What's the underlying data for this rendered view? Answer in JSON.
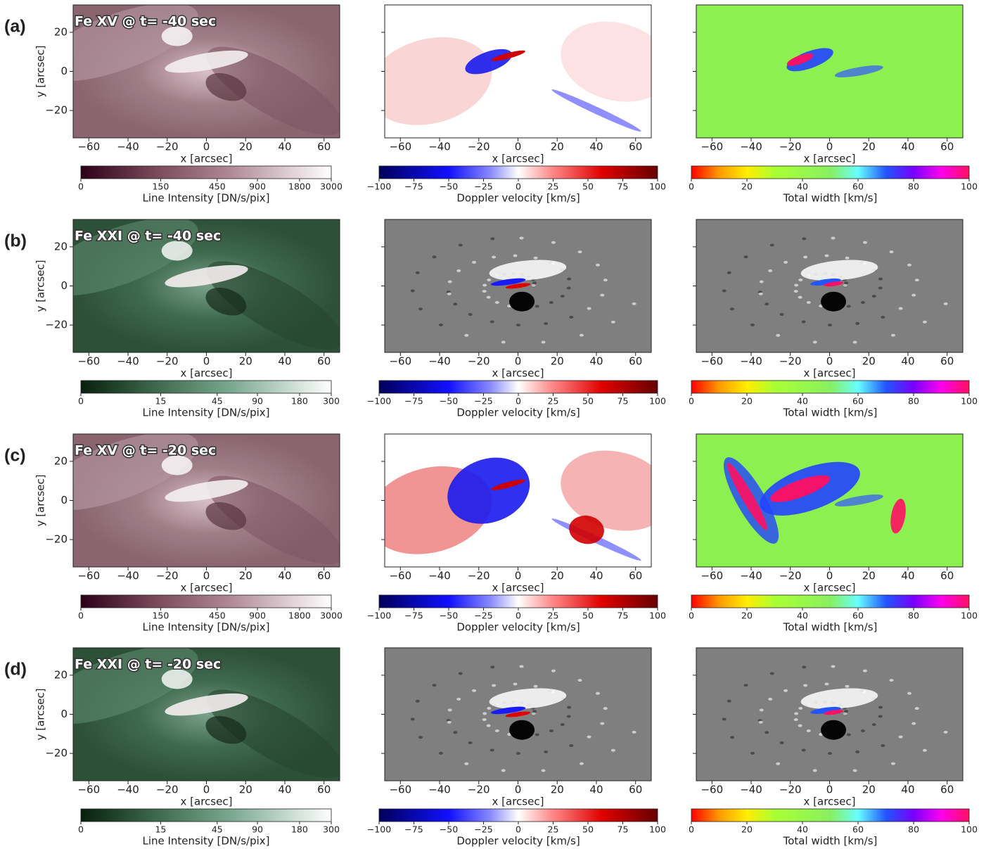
{
  "rows": [
    {
      "label": "(a)",
      "title": "Fe XV @ t= -40 sec",
      "intensity_ticks": [
        0,
        150,
        450,
        900,
        1800,
        3000
      ]
    },
    {
      "label": "(b)",
      "title": "Fe XXI @ t= -40 sec",
      "intensity_ticks": [
        0,
        15,
        45,
        90,
        180,
        300
      ]
    },
    {
      "label": "(c)",
      "title": "Fe XV @ t= -20 sec",
      "intensity_ticks": [
        0,
        150,
        450,
        900,
        1800,
        3000
      ]
    },
    {
      "label": "(d)",
      "title": "Fe XXI @ t= -20 sec",
      "intensity_ticks": [
        0,
        15,
        45,
        90,
        180,
        300
      ]
    }
  ],
  "axes": {
    "xlabel": "x [arcsec]",
    "xlim": [
      -68,
      68
    ],
    "xticks": [
      {
        "value": -60,
        "label": "−60"
      },
      {
        "value": -40,
        "label": "−40"
      },
      {
        "value": -20,
        "label": "−20"
      },
      0,
      20,
      40,
      60
    ],
    "ylabel": "y [arcsec]",
    "ylim": [
      -34,
      34
    ],
    "yticks": [
      {
        "value": -20,
        "label": "−20"
      },
      0,
      20
    ]
  },
  "colorbars": {
    "intensity": {
      "label": "Line Intensity [DN/s/pix]"
    },
    "doppler": {
      "label": "Doppler velocity [km/s]",
      "ticks": [
        {
          "value": -100,
          "label": "−100"
        },
        {
          "value": -75,
          "label": "−75"
        },
        {
          "value": -50,
          "label": "−50"
        },
        {
          "value": -25,
          "label": "−25"
        },
        0,
        25,
        50,
        75,
        100
      ]
    },
    "width": {
      "label": "Total width [km/s]",
      "ticks": [
        0,
        20,
        40,
        60,
        80,
        100
      ]
    }
  }
}
